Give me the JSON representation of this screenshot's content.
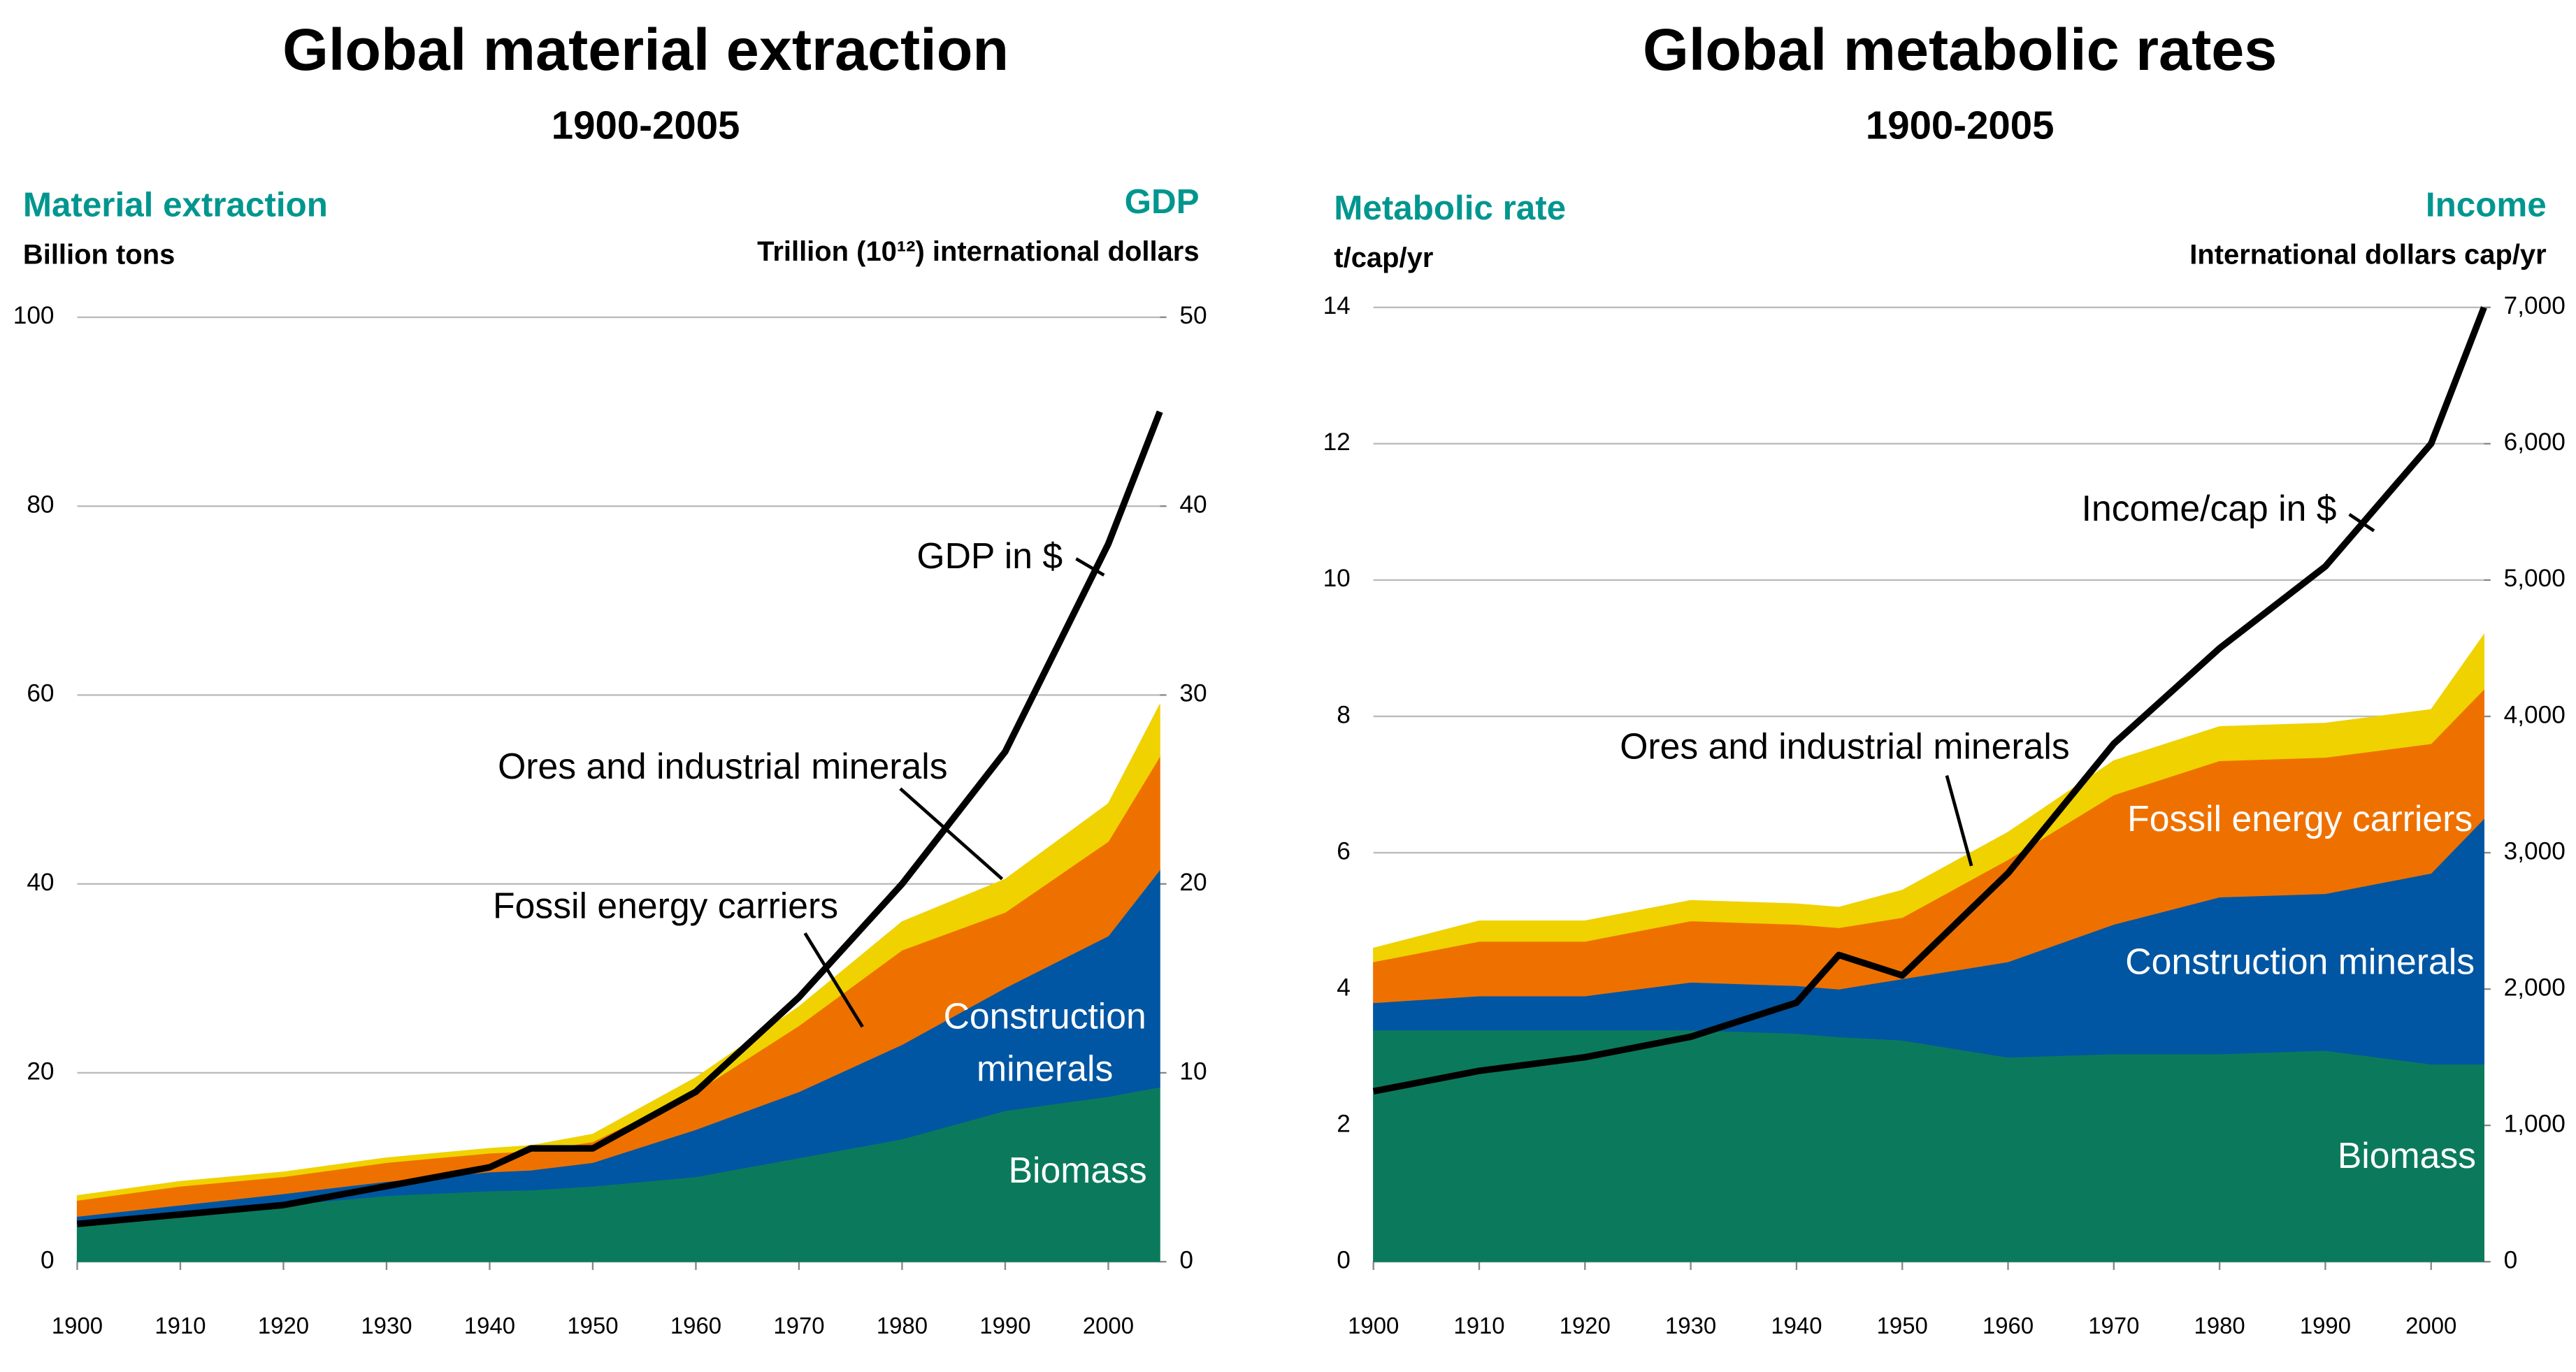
{
  "chart_data": [
    {
      "type": "stacked-area-line",
      "title": "Global material extraction",
      "subtitle": "1900-2005",
      "y_label": "Material extraction",
      "y_unit": "Billion tons",
      "y2_label": "GDP",
      "y2_unit": "Trillion (10¹²) international dollars",
      "x": [
        1900,
        1910,
        1920,
        1930,
        1940,
        1944,
        1950,
        1960,
        1970,
        1980,
        1990,
        2000,
        2005
      ],
      "xlim": [
        1900,
        2005
      ],
      "xticks": [
        1900,
        1910,
        1920,
        1930,
        1940,
        1950,
        1960,
        1970,
        1980,
        1990,
        2000
      ],
      "ylim": [
        0,
        100
      ],
      "yticks": [
        0,
        20,
        40,
        60,
        80,
        100
      ],
      "y2lim": [
        0,
        50
      ],
      "y2ticks": [
        0,
        10,
        20,
        30,
        40,
        50
      ],
      "grid": true,
      "series": [
        {
          "name": "Biomass",
          "color": "#0b7a5c",
          "values": [
            4,
            5,
            6,
            7,
            7.5,
            7.6,
            8,
            9,
            11,
            13,
            16,
            17.5,
            18.5
          ]
        },
        {
          "name": "Construction minerals",
          "color": "#0056a2",
          "values": [
            0.8,
            1,
            1.2,
            1.5,
            2,
            2.1,
            2.5,
            5,
            7,
            10,
            13,
            17,
            23
          ]
        },
        {
          "name": "Fossil energy carriers",
          "color": "#ee7100",
          "values": [
            1.7,
            2,
            1.8,
            2,
            2,
            2,
            2.2,
            4,
            7,
            10,
            8,
            10,
            12
          ]
        },
        {
          "name": "Ores and industrial minerals",
          "color": "#efd200",
          "values": [
            0.5,
            0.5,
            0.5,
            0.5,
            0.5,
            0.6,
            0.8,
            1.5,
            2,
            3,
            3.5,
            4,
            5.5
          ]
        },
        {
          "name": "GDP in $",
          "color": "#000000",
          "axis": "y2",
          "values": [
            2,
            2.5,
            3,
            4,
            5,
            6,
            6,
            9,
            14,
            20,
            27,
            38,
            45
          ]
        }
      ]
    },
    {
      "type": "stacked-area-line",
      "title": "Global metabolic rates",
      "subtitle": "1900-2005",
      "y_label": "Metabolic rate",
      "y_unit": "t/cap/yr",
      "y2_label": "Income",
      "y2_unit": "International dollars cap/yr",
      "x": [
        1900,
        1910,
        1920,
        1930,
        1940,
        1944,
        1950,
        1960,
        1970,
        1980,
        1990,
        2000,
        2005
      ],
      "xlim": [
        1900,
        2005
      ],
      "xticks": [
        1900,
        1910,
        1920,
        1930,
        1940,
        1950,
        1960,
        1970,
        1980,
        1990,
        2000
      ],
      "ylim": [
        0,
        14
      ],
      "yticks": [
        0,
        2,
        4,
        6,
        8,
        10,
        12,
        14
      ],
      "y2lim": [
        0,
        7000
      ],
      "y2ticks": [
        0,
        {
          "value": 1000,
          "label": "1,000"
        },
        {
          "value": 2000,
          "label": "2,000"
        },
        {
          "value": 3000,
          "label": "3,000"
        },
        {
          "value": 4000,
          "label": "4,000"
        },
        {
          "value": 5000,
          "label": "5,000"
        },
        {
          "value": 6000,
          "label": "6,000"
        },
        {
          "value": 7000,
          "label": "7,000"
        }
      ],
      "grid": true,
      "series": [
        {
          "name": "Biomass",
          "color": "#0b7a5c",
          "values": [
            3.4,
            3.4,
            3.4,
            3.4,
            3.35,
            3.3,
            3.25,
            3,
            3.05,
            3.05,
            3.1,
            2.9,
            2.9
          ]
        },
        {
          "name": "Construction minerals",
          "color": "#0056a2",
          "values": [
            0.4,
            0.5,
            0.5,
            0.7,
            0.7,
            0.7,
            0.9,
            1.4,
            1.9,
            2.3,
            2.3,
            2.8,
            3.6
          ]
        },
        {
          "name": "Fossil energy carriers",
          "color": "#ee7100",
          "values": [
            0.6,
            0.8,
            0.8,
            0.9,
            0.9,
            0.9,
            0.9,
            1.5,
            1.9,
            2,
            2,
            1.9,
            1.9
          ]
        },
        {
          "name": "Ores and industrial minerals",
          "color": "#efd200",
          "values": [
            0.2,
            0.3,
            0.3,
            0.3,
            0.3,
            0.3,
            0.4,
            0.4,
            0.5,
            0.5,
            0.5,
            0.5,
            0.8
          ]
        },
        {
          "name": "Income/cap in $",
          "color": "#000000",
          "axis": "y2",
          "values": [
            1250,
            1400,
            1500,
            1650,
            1900,
            2250,
            2100,
            2850,
            3800,
            4500,
            5100,
            6000,
            7000
          ]
        }
      ]
    }
  ]
}
